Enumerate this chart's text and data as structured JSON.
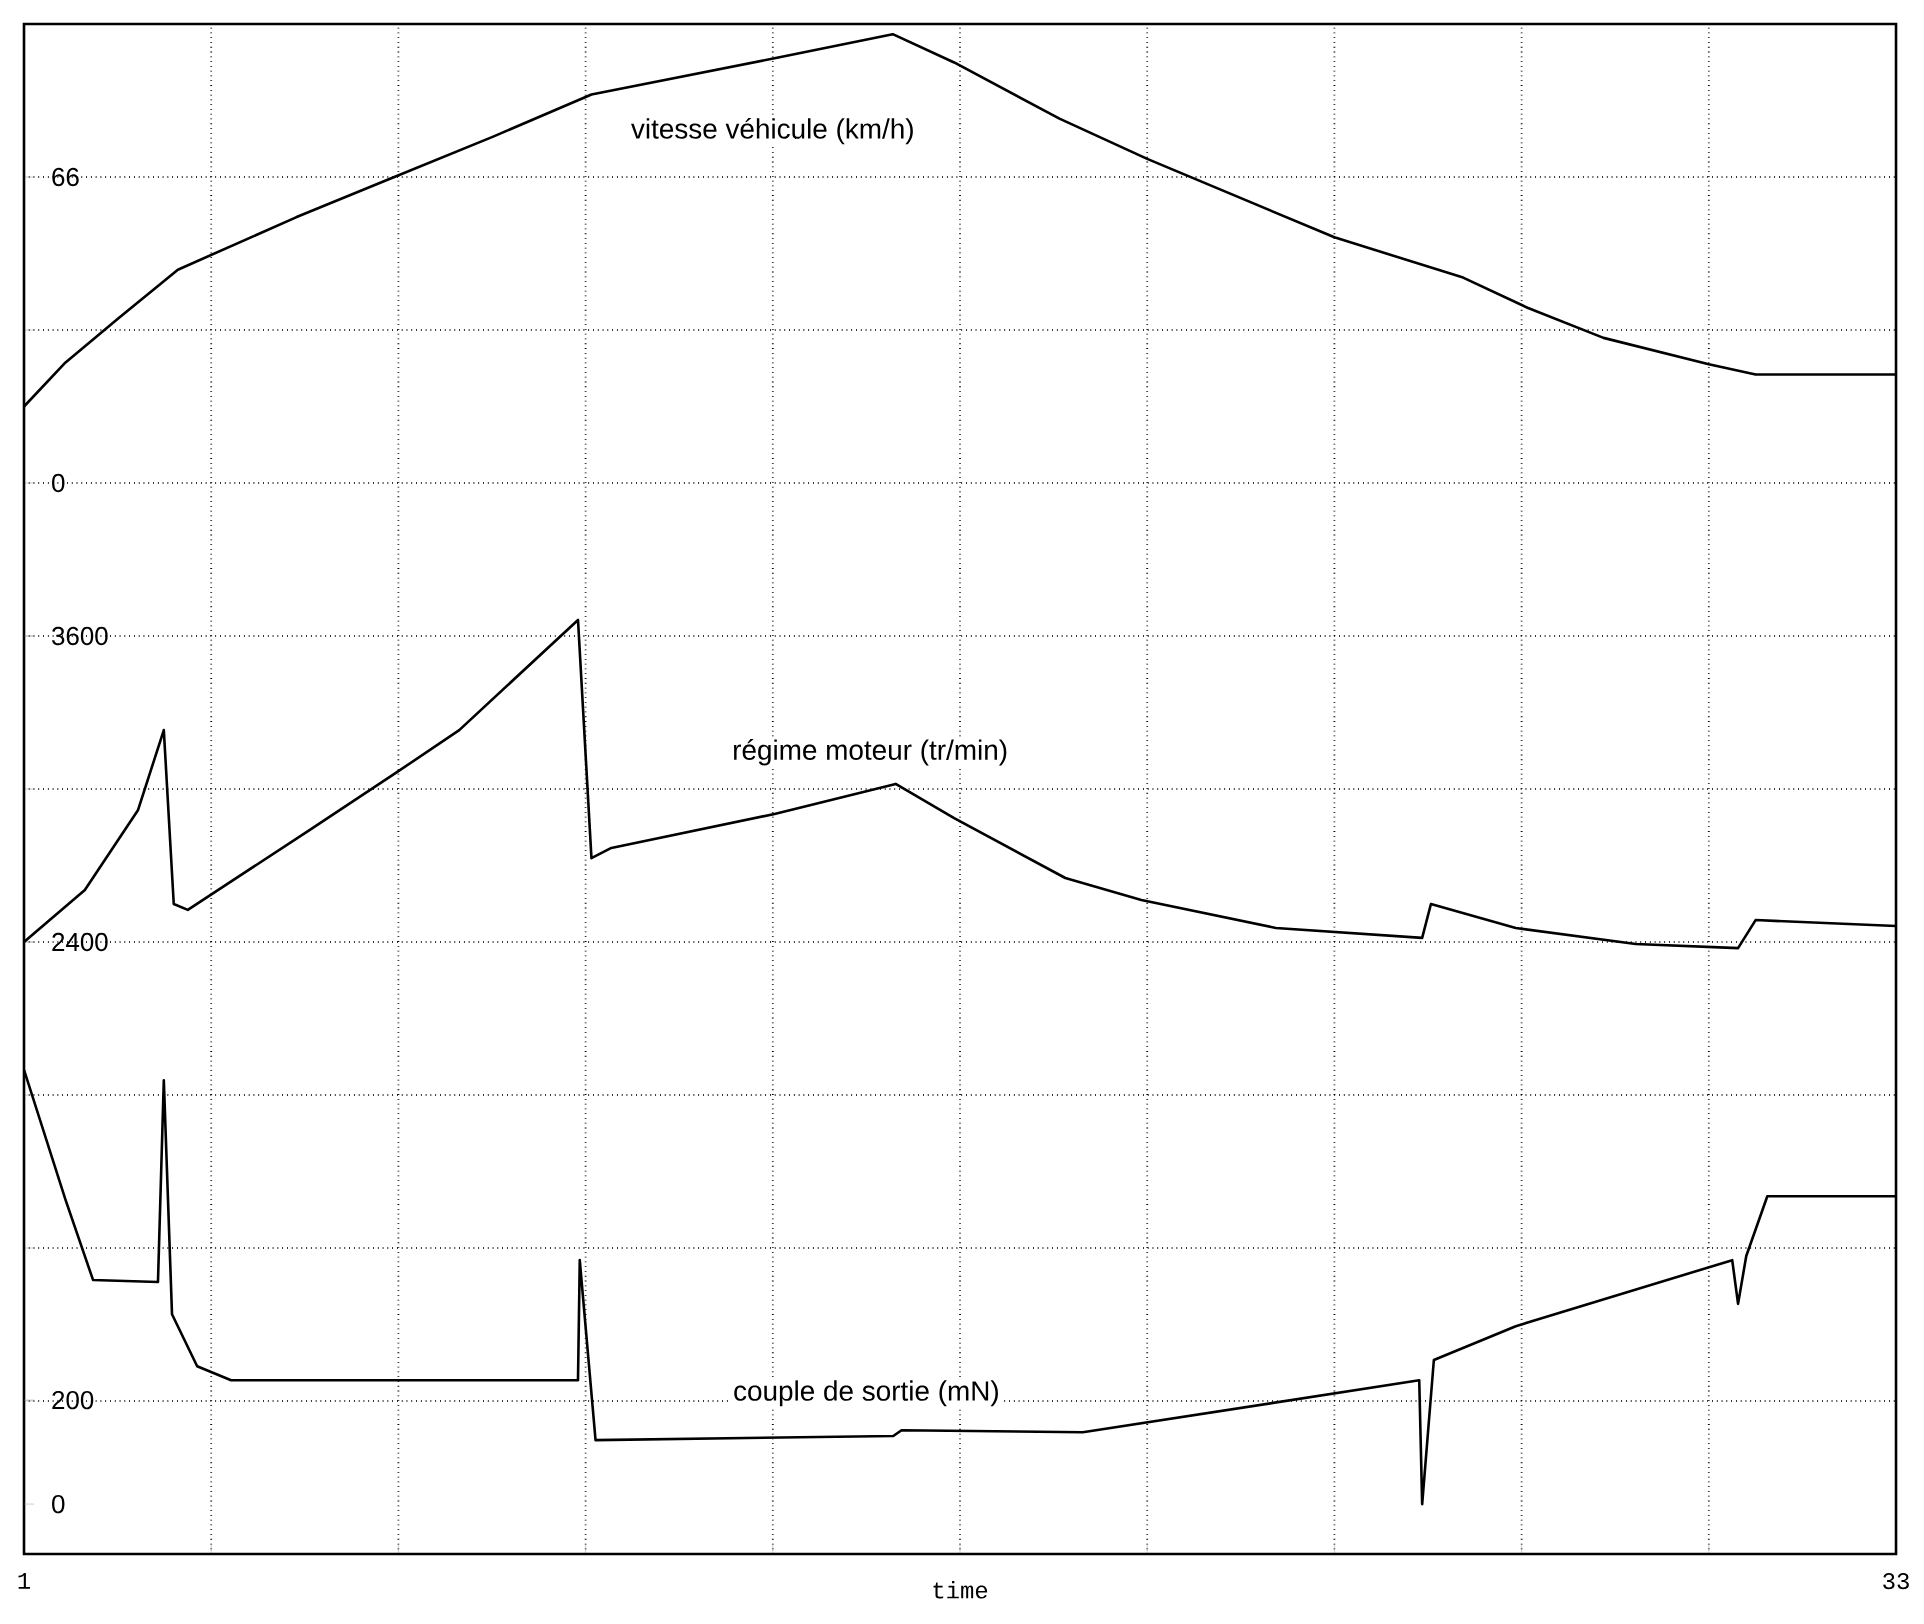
{
  "chart_data": {
    "type": "line",
    "xlabel": "time",
    "grid": true,
    "xlim": [
      1,
      33
    ],
    "xticks": [
      1,
      {
        "value": 4.2,
        "label": null
      },
      {
        "value": 7.4,
        "label": null
      },
      {
        "value": 10.6,
        "label": null
      },
      {
        "value": 13.8,
        "label": null
      },
      {
        "value": 17,
        "label": null
      },
      {
        "value": 20.2,
        "label": null
      },
      {
        "value": 23.4,
        "label": null
      },
      {
        "value": 26.6,
        "label": null
      },
      {
        "value": 29.8,
        "label": null
      },
      33
    ],
    "ylim": [
      -231,
      99
    ],
    "yticks": [
      {
        "value": -198,
        "label": null
      },
      {
        "value": -165,
        "label": null
      },
      {
        "value": -132,
        "label": null
      },
      {
        "value": -99,
        "label": null
      },
      {
        "value": -66,
        "label": null
      },
      {
        "value": -33,
        "label": null
      },
      0,
      {
        "value": 33,
        "label": null
      },
      66
    ],
    "y2lim": [
      0,
      6000
    ],
    "y2ticks": [
      2400,
      3600
    ],
    "y3lim": [
      -96,
      2846
    ],
    "y3ticks": [
      0,
      200
    ],
    "series": [
      {
        "name": "vitesse véhicule (km/h)",
        "color": "#000000",
        "axis": "y",
        "x": [
          1,
          1.71,
          2.62,
          3.63,
          5.65,
          7.33,
          9.02,
          10.7,
          13.83,
          15.85,
          16.9,
          18.7,
          20.2,
          23.4,
          25.6,
          26.7,
          28.0,
          29.8,
          30.6,
          33
        ],
        "values": [
          16.5,
          26,
          35.6,
          46,
          57.3,
          66,
          74.7,
          83.8,
          91.6,
          96.8,
          90.7,
          78.6,
          69.9,
          53,
          44.3,
          37.8,
          31.3,
          25.6,
          23.4,
          23.4
        ]
      },
      {
        "name": "régime moteur (tr/min)",
        "color": "#000000",
        "axis": "y2",
        "x": [
          1,
          2.04,
          2.95,
          3.39,
          3.56,
          3.8,
          5.88,
          7.33,
          8.44,
          10.47,
          10.7,
          11.04,
          13.83,
          15.9,
          16.9,
          18.8,
          20.1,
          22.4,
          24.9,
          25.05,
          26.5,
          28.55,
          30.3,
          30.6,
          33
        ],
        "values": [
          2400,
          2604,
          2918,
          3231,
          2549,
          2526,
          2839,
          3059,
          3231,
          3663,
          2729,
          2769,
          2902,
          3020,
          2886,
          2651,
          2565,
          2455,
          2416,
          2549,
          2455,
          2392,
          2376,
          2486,
          2463
        ]
      },
      {
        "name": "couple de sortie (mN)",
        "color": "#000000",
        "axis": "y3",
        "x": [
          1,
          1.71,
          2.18,
          3.29,
          3.39,
          3.53,
          3.96,
          4.54,
          10.47,
          10.5,
          10.77,
          15.86,
          16.0,
          19.1,
          24.85,
          24.9,
          25.1,
          26.5,
          30.2,
          30.3,
          30.44,
          30.8,
          33
        ],
        "values": [
          835,
          585,
          431,
          427,
          815,
          365,
          265,
          238,
          238,
          469,
          123,
          131,
          142,
          138,
          238,
          0,
          277,
          342,
          469,
          385,
          477,
          592,
          592
        ]
      }
    ]
  }
}
